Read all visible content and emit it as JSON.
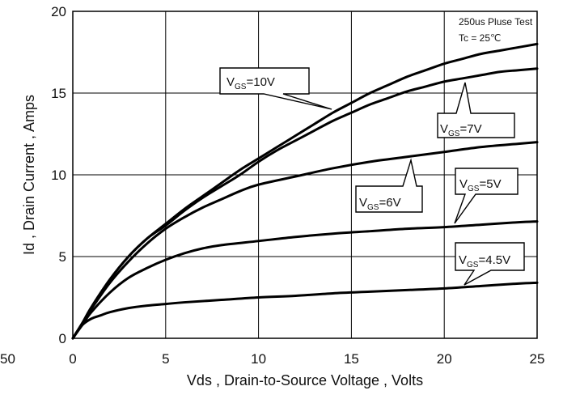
{
  "chart_data": {
    "type": "line",
    "title": "",
    "xlabel": "Vds , Drain-to-Source Voltage , Volts",
    "ylabel": "Id , Drain Current , Amps",
    "xlim": [
      0,
      25
    ],
    "ylim": [
      0,
      20
    ],
    "x_ticks": [
      "0",
      "5",
      "10",
      "15",
      "20",
      "25"
    ],
    "y_ticks": [
      "0",
      "5",
      "10",
      "15",
      "20"
    ],
    "grid": true,
    "annotations": [
      "250us Pluse Test",
      "Tc = 25℃"
    ],
    "stray_text": "50",
    "series": [
      {
        "name": "VGS=10V",
        "label_main": "V",
        "label_sub": "GS",
        "label_rest": "=10V",
        "x": [
          0,
          0.5,
          1,
          2,
          3,
          4,
          5,
          6,
          7,
          8,
          9,
          10,
          11,
          12,
          13,
          14,
          15,
          16,
          17,
          18,
          19,
          20,
          21,
          22,
          23,
          24,
          25
        ],
        "y": [
          0,
          0.9,
          1.9,
          3.6,
          5.0,
          6.1,
          7.0,
          7.9,
          8.7,
          9.5,
          10.3,
          11.0,
          11.7,
          12.4,
          13.1,
          13.8,
          14.4,
          15.0,
          15.5,
          16.0,
          16.4,
          16.8,
          17.1,
          17.4,
          17.6,
          17.8,
          18.0
        ]
      },
      {
        "name": "VGS=7V",
        "label_main": "V",
        "label_sub": "GS",
        "label_rest": "=7V",
        "x": [
          0,
          0.5,
          1,
          2,
          3,
          4,
          5,
          6,
          7,
          8,
          9,
          10,
          11,
          12,
          13,
          14,
          15,
          16,
          17,
          18,
          19,
          20,
          21,
          22,
          23,
          24,
          25
        ],
        "y": [
          0,
          0.9,
          1.9,
          3.6,
          5.0,
          6.1,
          6.9,
          7.8,
          8.6,
          9.3,
          10.0,
          10.8,
          11.5,
          12.1,
          12.7,
          13.3,
          13.8,
          14.3,
          14.7,
          15.1,
          15.4,
          15.7,
          15.9,
          16.1,
          16.3,
          16.4,
          16.5
        ]
      },
      {
        "name": "VGS=6V",
        "label_main": "V",
        "label_sub": "GS",
        "label_rest": "=6V",
        "x": [
          0,
          0.5,
          1,
          2,
          3,
          4,
          5,
          6,
          7,
          8,
          9,
          10,
          12,
          14,
          16,
          18,
          20,
          22,
          24,
          25
        ],
        "y": [
          0,
          0.9,
          1.8,
          3.4,
          4.7,
          5.8,
          6.7,
          7.4,
          8.0,
          8.5,
          9.0,
          9.4,
          9.9,
          10.4,
          10.8,
          11.1,
          11.4,
          11.7,
          11.9,
          12.0
        ]
      },
      {
        "name": "VGS=5V",
        "label_main": "V",
        "label_sub": "GS",
        "label_rest": "=5V",
        "x": [
          0,
          0.5,
          1,
          2,
          3,
          4,
          5,
          6,
          7,
          8,
          10,
          12,
          14,
          16,
          18,
          20,
          22,
          24,
          25
        ],
        "y": [
          0,
          0.8,
          1.6,
          2.8,
          3.7,
          4.3,
          4.8,
          5.2,
          5.5,
          5.7,
          5.95,
          6.2,
          6.4,
          6.55,
          6.7,
          6.8,
          6.95,
          7.1,
          7.15
        ]
      },
      {
        "name": "VGS=4.5V",
        "label_main": "V",
        "label_sub": "GS",
        "label_rest": "=4.5V",
        "x": [
          0,
          0.5,
          1,
          1.5,
          2,
          3,
          4,
          5,
          6,
          8,
          10,
          12,
          14,
          16,
          18,
          20,
          22,
          24,
          25
        ],
        "y": [
          0,
          0.8,
          1.2,
          1.4,
          1.6,
          1.85,
          2.0,
          2.1,
          2.2,
          2.35,
          2.5,
          2.6,
          2.75,
          2.85,
          2.95,
          3.05,
          3.2,
          3.35,
          3.4
        ]
      }
    ]
  }
}
